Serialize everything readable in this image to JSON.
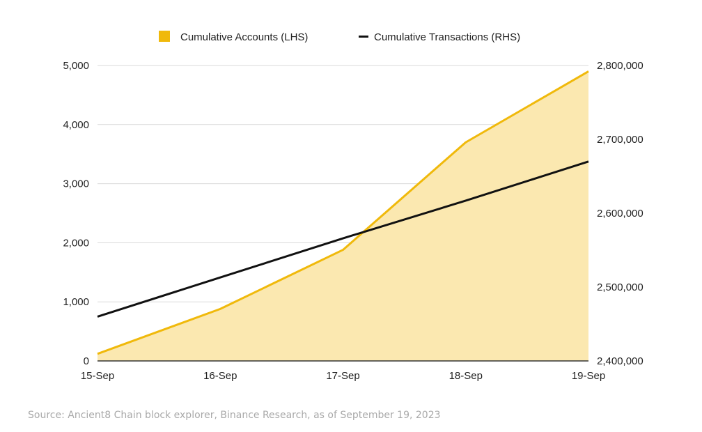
{
  "chart_data": {
    "type": "area",
    "categories": [
      "15-Sep",
      "16-Sep",
      "17-Sep",
      "18-Sep",
      "19-Sep"
    ],
    "series": [
      {
        "name": "Cumulative Accounts (LHS)",
        "type": "area",
        "axis": "left",
        "color": "#f0b90b",
        "fill": "#fbe8b0",
        "values": [
          120,
          880,
          1880,
          3700,
          4900
        ]
      },
      {
        "name": "Cumulative Transactions (RHS)",
        "type": "line",
        "axis": "right",
        "color": "#111111",
        "values": [
          2460000,
          2513000,
          2566000,
          2617000,
          2670000
        ]
      }
    ],
    "y_left": {
      "min": 0,
      "max": 5000,
      "ticks": [
        "0",
        "1,000",
        "2,000",
        "3,000",
        "4,000",
        "5,000"
      ]
    },
    "y_right": {
      "min": 2400000,
      "max": 2800000,
      "ticks": [
        "2,400,000",
        "2,500,000",
        "2,600,000",
        "2,700,000",
        "2,800,000"
      ]
    },
    "grid": true,
    "legend_position": "top"
  },
  "source": "Source: Ancient8 Chain block explorer, Binance Research, as of September 19, 2023"
}
